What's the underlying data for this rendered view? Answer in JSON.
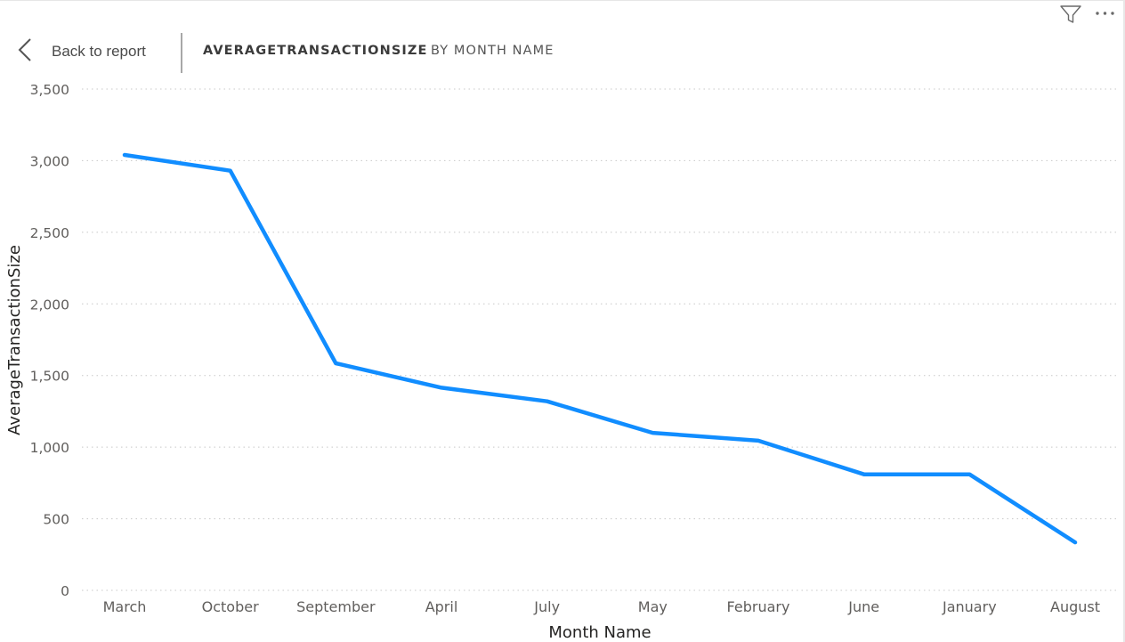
{
  "toolbar": {
    "filter_icon": "filter-funnel-icon",
    "more_icon": "more-options-icon"
  },
  "nav": {
    "back_label": "Back to report",
    "back_icon": "chevron-left-icon",
    "title_measure": "AVERAGETRANSACTIONSIZE",
    "title_dimension": "BY MONTH NAME"
  },
  "colors": {
    "series": "#118DFF",
    "gridline": "#c8c8c8",
    "tick_text": "#605e5c",
    "axis_title": "#252423"
  },
  "chart_data": {
    "type": "line",
    "categories": [
      "March",
      "October",
      "September",
      "April",
      "July",
      "May",
      "February",
      "June",
      "January",
      "August"
    ],
    "series": [
      {
        "values": [
          3040,
          2930,
          1585,
          1415,
          1320,
          1100,
          1045,
          810,
          810,
          335
        ]
      }
    ],
    "xlabel": "Month Name",
    "ylabel": "AverageTransactionSize",
    "ylim": [
      0,
      3500
    ],
    "yticks": [
      0,
      500,
      1000,
      1500,
      2000,
      2500,
      3000,
      3500
    ],
    "ytick_labels": [
      "0",
      "500",
      "1,000",
      "1,500",
      "2,000",
      "2,500",
      "3,000",
      "3,500"
    ],
    "grid": true,
    "legend": "none"
  }
}
